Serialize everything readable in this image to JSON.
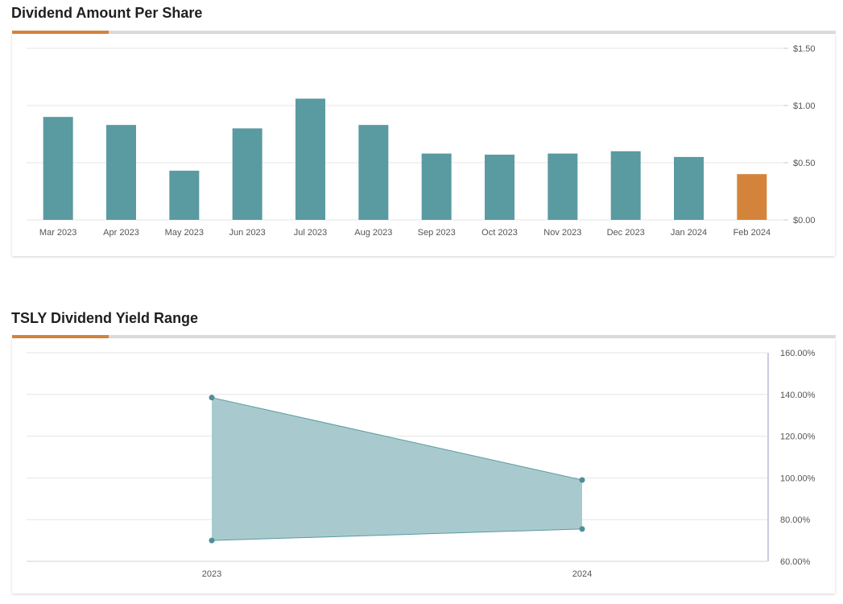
{
  "chart_data": [
    {
      "type": "bar",
      "title": "Dividend Amount Per Share",
      "categories": [
        "Mar 2023",
        "Apr 2023",
        "May 2023",
        "Jun 2023",
        "Jul 2023",
        "Aug 2023",
        "Sep 2023",
        "Oct 2023",
        "Nov 2023",
        "Dec 2023",
        "Jan 2024",
        "Feb 2024"
      ],
      "values": [
        0.9,
        0.83,
        0.43,
        0.8,
        1.06,
        0.83,
        0.58,
        0.57,
        0.58,
        0.6,
        0.55,
        0.4
      ],
      "highlight_index": 11,
      "ylim": [
        0,
        1.5
      ],
      "yticks": [
        0,
        0.5,
        1.0,
        1.5
      ],
      "ytick_labels": [
        "$0.00",
        "$0.50",
        "$1.00",
        "$1.50"
      ],
      "y_axis_side": "right",
      "grid": true,
      "colors": {
        "bar": "#5a9aa1",
        "highlight": "#d4843a"
      }
    },
    {
      "type": "area",
      "title": "TSLY Dividend Yield Range",
      "categories": [
        "2023",
        "2024"
      ],
      "series": [
        {
          "values": [
            138.5,
            99
          ]
        },
        {
          "values": [
            70,
            75.5
          ]
        }
      ],
      "ylim": [
        60,
        160
      ],
      "yticks": [
        60,
        80,
        100,
        120,
        140,
        160
      ],
      "ytick_labels": [
        "60.00%",
        "80.00%",
        "100.00%",
        "120.00%",
        "140.00%",
        "160.00%"
      ],
      "y_axis_side": "right",
      "grid": true,
      "colors": {
        "fill": "#a8cace",
        "line": "#5a9aa1",
        "point": "#4f8f96"
      }
    }
  ],
  "colors": {
    "accent": "#d4843a",
    "rule": "#dcdcdc",
    "grid": "#e6e6e6",
    "tick_text": "#555555"
  }
}
